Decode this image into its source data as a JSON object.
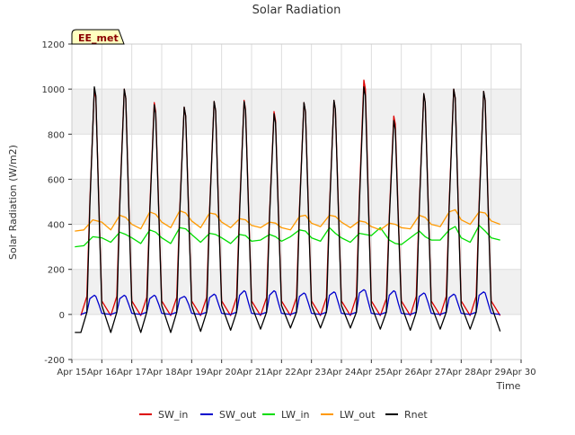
{
  "chart_data": {
    "type": "line",
    "title": "Solar Radiation",
    "xlabel": "Time",
    "ylabel": "Solar Radiation (W/m2)",
    "site_label": "EE_met",
    "xlim": [
      15,
      30
    ],
    "ylim": [
      -200,
      1200
    ],
    "xticks": [
      {
        "value": 15,
        "label": "Apr 15"
      },
      {
        "value": 16,
        "label": "Apr 16"
      },
      {
        "value": 17,
        "label": "Apr 17"
      },
      {
        "value": 18,
        "label": "Apr 18"
      },
      {
        "value": 19,
        "label": "Apr 19"
      },
      {
        "value": 20,
        "label": "Apr 20"
      },
      {
        "value": 21,
        "label": "Apr 21"
      },
      {
        "value": 22,
        "label": "Apr 22"
      },
      {
        "value": 23,
        "label": "Apr 23"
      },
      {
        "value": 24,
        "label": "Apr 24"
      },
      {
        "value": 25,
        "label": "Apr 25"
      },
      {
        "value": 26,
        "label": "Apr 26"
      },
      {
        "value": 27,
        "label": "Apr 27"
      },
      {
        "value": 28,
        "label": "Apr 28"
      },
      {
        "value": 29,
        "label": "Apr 29"
      },
      {
        "value": 30,
        "label": "Apr 30"
      }
    ],
    "yticks": [
      -200,
      0,
      200,
      400,
      600,
      800,
      1000,
      1200
    ],
    "grid": true,
    "legend_position": "bottom",
    "series": [
      {
        "name": "SW_in",
        "color": "#dd0000",
        "x": [
          15.3,
          15.5,
          15.6,
          15.75,
          15.8,
          15.9,
          16.0,
          16.3,
          16.5,
          16.6,
          16.75,
          16.8,
          16.9,
          17.0,
          17.3,
          17.5,
          17.6,
          17.75,
          17.8,
          17.9,
          18.0,
          18.3,
          18.5,
          18.6,
          18.75,
          18.8,
          18.9,
          19.0,
          19.3,
          19.5,
          19.6,
          19.75,
          19.8,
          19.9,
          20.0,
          20.3,
          20.5,
          20.6,
          20.75,
          20.8,
          20.9,
          21.0,
          21.3,
          21.5,
          21.6,
          21.75,
          21.8,
          21.9,
          22.0,
          22.3,
          22.5,
          22.6,
          22.75,
          22.8,
          22.9,
          23.0,
          23.3,
          23.5,
          23.6,
          23.75,
          23.8,
          23.9,
          24.0,
          24.3,
          24.5,
          24.6,
          24.75,
          24.8,
          24.9,
          25.0,
          25.3,
          25.5,
          25.6,
          25.75,
          25.8,
          25.9,
          26.0,
          26.3,
          26.5,
          26.6,
          26.75,
          26.8,
          26.9,
          27.0,
          27.3,
          27.5,
          27.6,
          27.75,
          27.8,
          27.9,
          28.0,
          28.3,
          28.5,
          28.6,
          28.75,
          28.8,
          28.9,
          29.0,
          29.3
        ],
        "y": [
          -5,
          80,
          500,
          1000,
          960,
          500,
          60,
          -5,
          80,
          500,
          1000,
          960,
          500,
          60,
          -5,
          75,
          470,
          940,
          900,
          470,
          60,
          -5,
          75,
          460,
          920,
          880,
          460,
          60,
          -5,
          75,
          470,
          945,
          905,
          470,
          60,
          -5,
          75,
          475,
          950,
          910,
          475,
          60,
          -5,
          75,
          450,
          900,
          860,
          450,
          60,
          -5,
          75,
          470,
          940,
          900,
          470,
          60,
          -5,
          75,
          475,
          950,
          910,
          475,
          60,
          -5,
          80,
          520,
          1040,
          1000,
          520,
          60,
          -5,
          70,
          440,
          880,
          845,
          440,
          60,
          -5,
          80,
          490,
          980,
          940,
          490,
          60,
          -5,
          80,
          500,
          1000,
          960,
          500,
          60,
          -5,
          80,
          495,
          990,
          950,
          495,
          60,
          -5
        ]
      },
      {
        "name": "SW_out",
        "color": "#0000cc",
        "x": [
          15.3,
          15.5,
          15.6,
          15.75,
          15.8,
          15.9,
          16.0,
          16.3,
          16.5,
          16.6,
          16.75,
          16.8,
          16.9,
          17.0,
          17.3,
          17.5,
          17.6,
          17.75,
          17.8,
          17.9,
          18.0,
          18.3,
          18.5,
          18.6,
          18.75,
          18.8,
          18.9,
          19.0,
          19.3,
          19.5,
          19.6,
          19.75,
          19.8,
          19.9,
          20.0,
          20.3,
          20.5,
          20.6,
          20.75,
          20.8,
          20.9,
          21.0,
          21.3,
          21.5,
          21.6,
          21.75,
          21.8,
          21.9,
          22.0,
          22.3,
          22.5,
          22.6,
          22.75,
          22.8,
          22.9,
          23.0,
          23.3,
          23.5,
          23.6,
          23.75,
          23.8,
          23.9,
          24.0,
          24.3,
          24.5,
          24.6,
          24.75,
          24.8,
          24.9,
          25.0,
          25.3,
          25.5,
          25.6,
          25.75,
          25.8,
          25.9,
          26.0,
          26.3,
          26.5,
          26.6,
          26.75,
          26.8,
          26.9,
          27.0,
          27.3,
          27.5,
          27.6,
          27.75,
          27.8,
          27.9,
          28.0,
          28.3,
          28.5,
          28.6,
          28.75,
          28.8,
          28.9,
          29.0,
          29.3
        ],
        "y": [
          0,
          10,
          70,
          85,
          80,
          45,
          5,
          0,
          10,
          70,
          85,
          80,
          45,
          5,
          0,
          10,
          70,
          85,
          80,
          45,
          5,
          0,
          10,
          70,
          80,
          75,
          45,
          5,
          0,
          10,
          75,
          90,
          85,
          45,
          5,
          0,
          10,
          85,
          105,
          100,
          50,
          5,
          0,
          10,
          85,
          105,
          100,
          50,
          5,
          0,
          10,
          80,
          95,
          90,
          50,
          5,
          0,
          10,
          85,
          100,
          95,
          50,
          5,
          0,
          10,
          95,
          110,
          105,
          55,
          5,
          0,
          10,
          85,
          105,
          100,
          50,
          5,
          0,
          10,
          80,
          95,
          90,
          50,
          5,
          0,
          10,
          75,
          90,
          85,
          45,
          5,
          0,
          10,
          85,
          100,
          95,
          50,
          5,
          0
        ]
      },
      {
        "name": "LW_in",
        "color": "#00dd00",
        "x": [
          15.1,
          15.4,
          15.7,
          16.0,
          16.3,
          16.6,
          16.8,
          17.0,
          17.3,
          17.6,
          17.8,
          18.0,
          18.3,
          18.6,
          18.8,
          19.0,
          19.3,
          19.6,
          19.8,
          20.0,
          20.3,
          20.6,
          20.8,
          21.0,
          21.3,
          21.6,
          21.8,
          22.0,
          22.3,
          22.6,
          22.8,
          23.0,
          23.3,
          23.6,
          23.8,
          24.0,
          24.3,
          24.6,
          24.8,
          25.0,
          25.3,
          25.6,
          25.8,
          26.0,
          26.3,
          26.6,
          26.8,
          27.0,
          27.3,
          27.6,
          27.8,
          28.0,
          28.3,
          28.6,
          28.8,
          29.0,
          29.3
        ],
        "y": [
          300,
          305,
          345,
          340,
          320,
          365,
          355,
          340,
          315,
          375,
          365,
          340,
          315,
          385,
          380,
          355,
          320,
          360,
          355,
          340,
          315,
          355,
          350,
          325,
          330,
          355,
          345,
          325,
          345,
          375,
          370,
          340,
          325,
          385,
          360,
          340,
          320,
          360,
          355,
          350,
          385,
          330,
          315,
          310,
          340,
          370,
          345,
          330,
          330,
          375,
          390,
          340,
          320,
          395,
          370,
          340,
          330
        ]
      },
      {
        "name": "LW_out",
        "color": "#ff9900",
        "x": [
          15.1,
          15.4,
          15.7,
          16.0,
          16.3,
          16.6,
          16.8,
          17.0,
          17.3,
          17.6,
          17.8,
          18.0,
          18.3,
          18.6,
          18.8,
          19.0,
          19.3,
          19.6,
          19.8,
          20.0,
          20.3,
          20.6,
          20.8,
          21.0,
          21.3,
          21.6,
          21.8,
          22.0,
          22.3,
          22.6,
          22.8,
          23.0,
          23.3,
          23.6,
          23.8,
          24.0,
          24.3,
          24.6,
          24.8,
          25.0,
          25.3,
          25.6,
          25.8,
          26.0,
          26.3,
          26.6,
          26.8,
          27.0,
          27.3,
          27.6,
          27.8,
          28.0,
          28.3,
          28.6,
          28.8,
          29.0,
          29.3
        ],
        "y": [
          370,
          375,
          420,
          410,
          375,
          440,
          430,
          400,
          380,
          455,
          445,
          410,
          385,
          460,
          450,
          415,
          385,
          450,
          445,
          410,
          385,
          425,
          420,
          395,
          385,
          410,
          405,
          385,
          375,
          435,
          440,
          405,
          390,
          440,
          435,
          410,
          385,
          415,
          410,
          390,
          375,
          405,
          400,
          385,
          380,
          440,
          430,
          400,
          390,
          455,
          465,
          420,
          400,
          455,
          450,
          415,
          400
        ]
      },
      {
        "name": "Rnet",
        "color": "#000000",
        "x": [
          15.1,
          15.3,
          15.5,
          15.6,
          15.75,
          15.8,
          15.9,
          16.0,
          16.3,
          16.5,
          16.6,
          16.75,
          16.8,
          16.9,
          17.0,
          17.3,
          17.5,
          17.6,
          17.75,
          17.8,
          17.9,
          18.0,
          18.3,
          18.5,
          18.6,
          18.75,
          18.8,
          18.9,
          19.0,
          19.3,
          19.5,
          19.6,
          19.75,
          19.8,
          19.9,
          20.0,
          20.3,
          20.5,
          20.6,
          20.75,
          20.8,
          20.9,
          21.0,
          21.3,
          21.5,
          21.6,
          21.75,
          21.8,
          21.9,
          22.0,
          22.3,
          22.5,
          22.6,
          22.75,
          22.8,
          22.9,
          23.0,
          23.3,
          23.5,
          23.6,
          23.75,
          23.8,
          23.9,
          24.0,
          24.3,
          24.5,
          24.6,
          24.75,
          24.8,
          24.9,
          25.0,
          25.3,
          25.5,
          25.6,
          25.75,
          25.8,
          25.9,
          26.0,
          26.3,
          26.5,
          26.6,
          26.75,
          26.8,
          26.9,
          27.0,
          27.3,
          27.5,
          27.6,
          27.75,
          27.8,
          27.9,
          28.0,
          28.3,
          28.5,
          28.6,
          28.75,
          28.8,
          28.9,
          29.0,
          29.3
        ],
        "y": [
          -80,
          -80,
          10,
          480,
          1010,
          970,
          480,
          40,
          -80,
          10,
          480,
          1000,
          960,
          480,
          40,
          -80,
          10,
          450,
          930,
          890,
          450,
          40,
          -80,
          10,
          440,
          920,
          880,
          440,
          40,
          -75,
          10,
          450,
          945,
          905,
          450,
          40,
          -70,
          10,
          455,
          945,
          905,
          455,
          40,
          -65,
          10,
          430,
          890,
          850,
          430,
          40,
          -60,
          10,
          450,
          940,
          900,
          450,
          40,
          -60,
          10,
          455,
          950,
          910,
          455,
          40,
          -60,
          10,
          490,
          1010,
          970,
          490,
          40,
          -65,
          10,
          420,
          860,
          820,
          420,
          40,
          -70,
          10,
          470,
          980,
          940,
          470,
          40,
          -65,
          10,
          480,
          1000,
          960,
          480,
          40,
          -65,
          10,
          475,
          990,
          950,
          475,
          40,
          -75
        ]
      }
    ]
  }
}
